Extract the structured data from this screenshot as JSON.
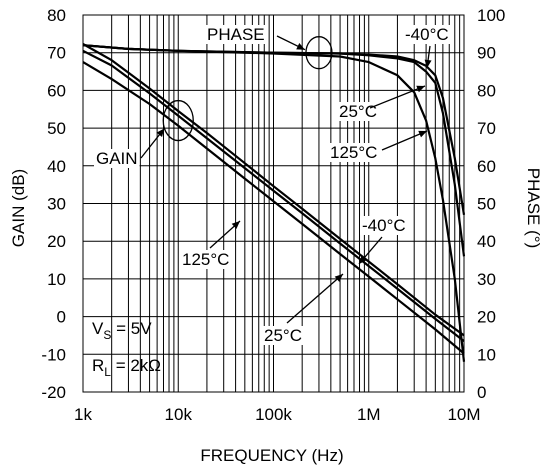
{
  "chart_data": {
    "type": "line",
    "xlabel": "FREQUENCY (Hz)",
    "ylabel": "GAIN (dB)",
    "y2label": "PHASE (°)",
    "xscale": "log",
    "xlim": [
      1000,
      10000000
    ],
    "ylim": [
      -20,
      80
    ],
    "y2lim": [
      0,
      100
    ],
    "grid": true,
    "x_tick_labels": [
      "1k",
      "10k",
      "100k",
      "1M",
      "10M"
    ],
    "y_tick_labels": [
      "80",
      "70",
      "60",
      "50",
      "40",
      "30",
      "20",
      "10",
      "0",
      "-10",
      "-20"
    ],
    "y2_tick_labels": [
      "100",
      "90",
      "80",
      "70",
      "60",
      "50",
      "40",
      "30",
      "20",
      "10",
      "0"
    ],
    "conditions": {
      "vs_prefix": "V",
      "vs_sub": "S",
      "vs_value": " = 5V",
      "rl_prefix": "R",
      "rl_sub": "L",
      "rl_value": " = 2kΩ"
    },
    "annotations": {
      "phase": "PHASE",
      "gain": "GAIN",
      "phase_m40": "-40°C",
      "phase_25": "25°C",
      "phase_125": "125°C",
      "gain_m40": "-40°C",
      "gain_125": "125°C",
      "gain_25": "25°C"
    },
    "series": [
      {
        "axis": "gain",
        "temperature": "-40°C",
        "x": [
          1000,
          2000,
          5000,
          10000,
          20000,
          50000,
          100000,
          200000,
          500000,
          1000000,
          2000000,
          5000000,
          10000000
        ],
        "y": [
          72.3,
          68,
          60.5,
          54.5,
          48.7,
          40.7,
          34.6,
          28.6,
          20.6,
          14.6,
          8.6,
          0.5,
          -5
        ]
      },
      {
        "axis": "gain",
        "temperature": "25°C",
        "x": [
          1000,
          2000,
          5000,
          10000,
          20000,
          50000,
          100000,
          200000,
          500000,
          1000000,
          2000000,
          5000000,
          10000000
        ],
        "y": [
          70.5,
          66.6,
          59.2,
          53.3,
          47.3,
          39.4,
          33.4,
          27.4,
          19.4,
          13.4,
          7.4,
          -0.6,
          -6.5
        ]
      },
      {
        "axis": "gain",
        "temperature": "125°C",
        "x": [
          1000,
          2000,
          5000,
          10000,
          20000,
          50000,
          100000,
          200000,
          500000,
          1000000,
          2000000,
          5000000,
          10000000
        ],
        "y": [
          67.5,
          63,
          56.4,
          50.6,
          44.6,
          36.6,
          30.6,
          24.6,
          16.6,
          10.6,
          4.6,
          -3.4,
          -9.8
        ]
      },
      {
        "axis": "phase",
        "temperature": "-40°C",
        "x": [
          1000,
          3000,
          10000,
          100000,
          500000,
          1000000,
          2000000,
          3000000,
          4000000,
          5000000,
          6000000,
          8000000,
          10000000
        ],
        "y": [
          92,
          91,
          90.5,
          90,
          89.8,
          89.5,
          89,
          88,
          86.5,
          84,
          78,
          62,
          47
        ]
      },
      {
        "axis": "phase",
        "temperature": "25°C",
        "x": [
          1000,
          3000,
          10000,
          100000,
          500000,
          1000000,
          2000000,
          3000000,
          4000000,
          5000000,
          6000000,
          8000000,
          10000000
        ],
        "y": [
          92,
          91,
          90.5,
          90,
          89.8,
          89.3,
          88.5,
          87.5,
          85,
          82,
          74,
          55,
          36
        ]
      },
      {
        "axis": "phase",
        "temperature": "125°C",
        "x": [
          1000,
          3000,
          10000,
          100000,
          500000,
          1000000,
          2000000,
          3000000,
          4000000,
          5000000,
          6000000,
          8000000,
          10000000
        ],
        "y": [
          92,
          91,
          90.5,
          89.8,
          89,
          87.5,
          84,
          79.5,
          72,
          62,
          51,
          30,
          8
        ]
      }
    ]
  }
}
